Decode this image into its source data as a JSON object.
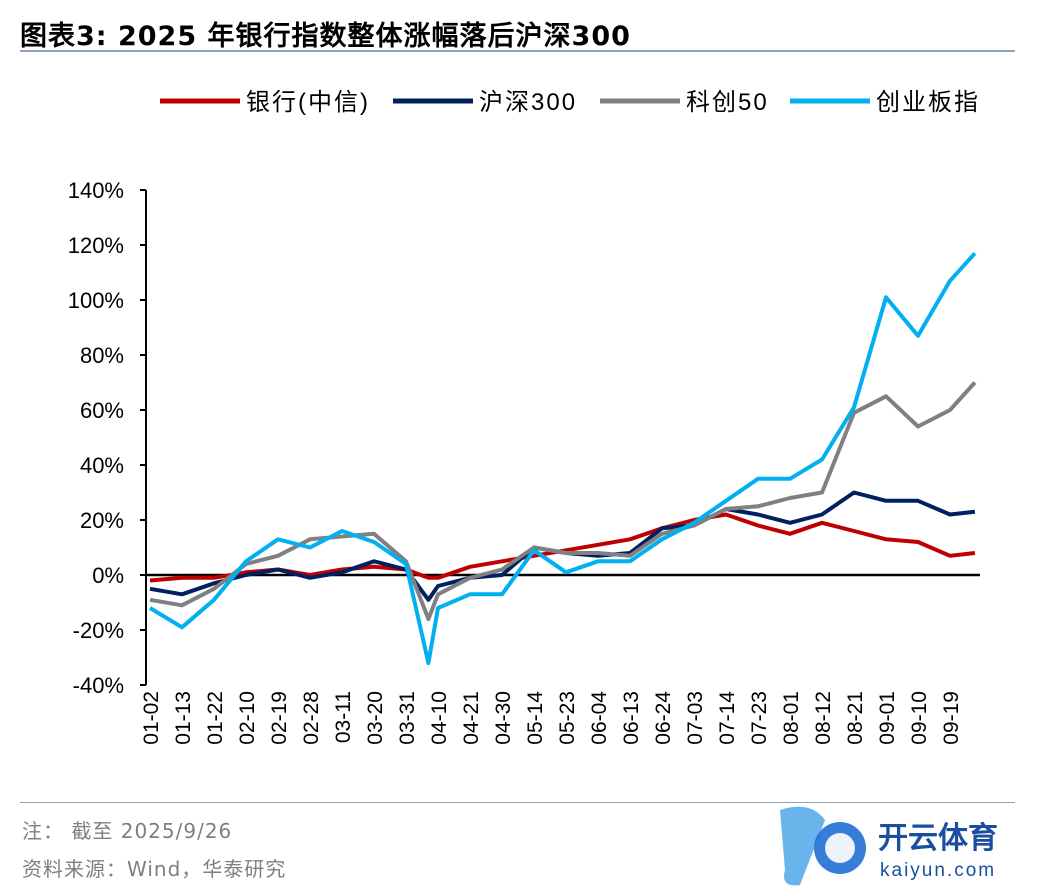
{
  "title": "图表3:  2025 年银行指数整体涨幅落后沪深300",
  "notes": [
    "注：  截至 2025/9/26",
    "资料来源：Wind，华泰研究"
  ],
  "watermark": {
    "text": "开云体育",
    "url_text": "kaiyun.com"
  },
  "chart_data": {
    "type": "line",
    "title": "",
    "xlabel": "",
    "ylabel": "",
    "ylim": [
      -40,
      140
    ],
    "yticks": [
      -40,
      -20,
      0,
      20,
      40,
      60,
      80,
      100,
      120,
      140
    ],
    "ytick_labels": [
      "-40%",
      "-20%",
      "0%",
      "20%",
      "40%",
      "60%",
      "80%",
      "100%",
      "120%",
      "140%"
    ],
    "xtick_labels": [
      "01-02",
      "01-13",
      "01-22",
      "02-10",
      "02-19",
      "02-28",
      "03-11",
      "03-20",
      "03-31",
      "04-10",
      "04-21",
      "04-30",
      "05-14",
      "05-23",
      "06-04",
      "06-13",
      "06-24",
      "07-03",
      "07-14",
      "07-23",
      "08-01",
      "08-12",
      "08-21",
      "09-01",
      "09-10",
      "09-19"
    ],
    "legend_position": "top",
    "grid": false,
    "x": [
      "01-02",
      "01-13",
      "01-22",
      "02-10",
      "02-19",
      "02-28",
      "03-11",
      "03-20",
      "03-31",
      "04-07",
      "04-10",
      "04-21",
      "04-30",
      "05-14",
      "05-23",
      "06-04",
      "06-13",
      "06-24",
      "07-03",
      "07-14",
      "07-23",
      "08-01",
      "08-12",
      "08-21",
      "09-01",
      "09-10",
      "09-19",
      "09-26"
    ],
    "series": [
      {
        "name": "银行(中信)",
        "color": "#c00000",
        "values": [
          -2,
          -1,
          -1,
          1,
          2,
          0,
          2,
          3,
          2,
          -1,
          -1,
          3,
          5,
          7,
          9,
          11,
          13,
          17,
          20,
          22,
          18,
          15,
          19,
          16,
          13,
          12,
          7,
          8
        ]
      },
      {
        "name": "沪深300",
        "color": "#002060",
        "values": [
          -5,
          -7,
          -3,
          0,
          2,
          -1,
          1,
          5,
          2,
          -9,
          -4,
          -1,
          0,
          10,
          8,
          7,
          8,
          17,
          18,
          24,
          22,
          19,
          22,
          30,
          27,
          27,
          22,
          23
        ]
      },
      {
        "name": "科创50",
        "color": "#808080",
        "values": [
          -9,
          -11,
          -5,
          4,
          7,
          13,
          14,
          15,
          5,
          -16,
          -7,
          -1,
          2,
          10,
          8,
          8,
          7,
          15,
          18,
          24,
          25,
          28,
          30,
          59,
          65,
          54,
          60,
          70
        ]
      },
      {
        "name": "创业板指",
        "color": "#00b0f0",
        "values": [
          -12,
          -19,
          -9,
          5,
          13,
          10,
          16,
          12,
          4,
          -32,
          -12,
          -7,
          -7,
          9,
          1,
          5,
          5,
          13,
          19,
          27,
          35,
          35,
          42,
          61,
          101,
          87,
          107,
          117
        ]
      }
    ]
  }
}
